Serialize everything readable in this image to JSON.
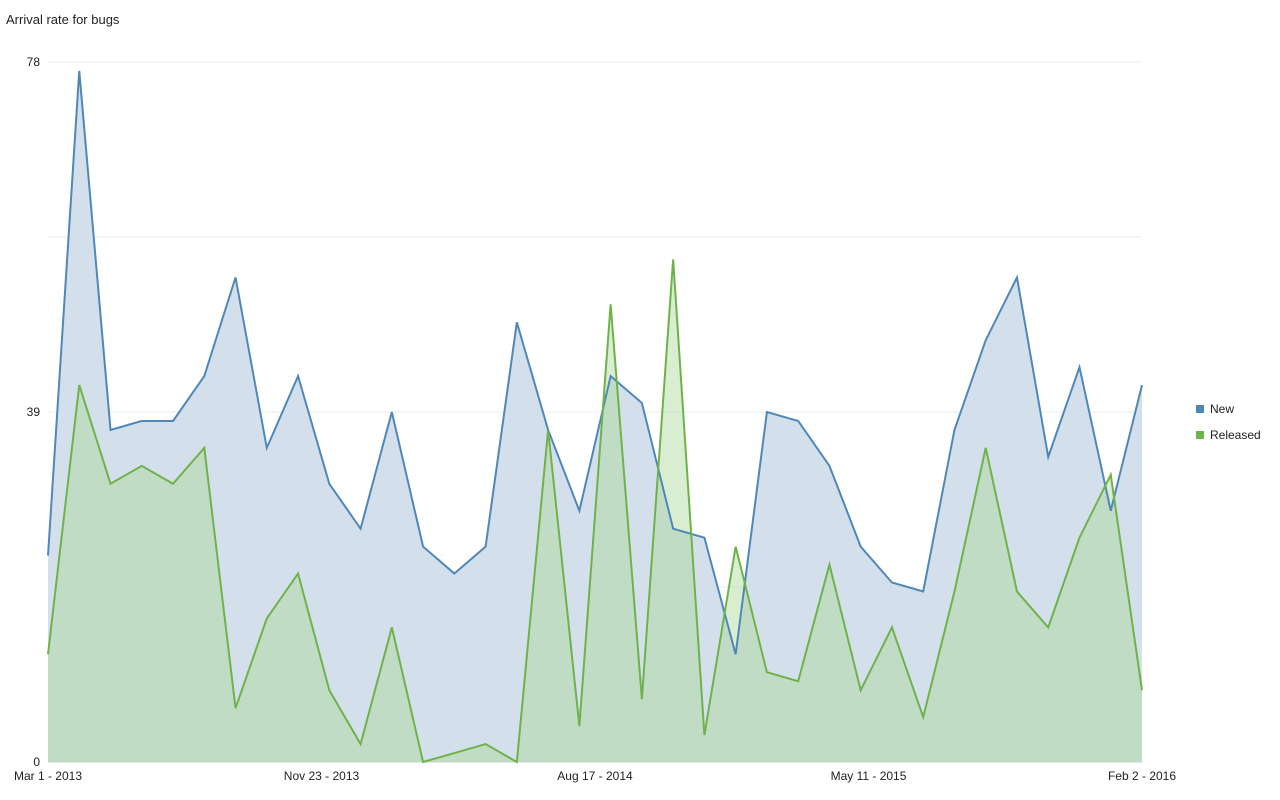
{
  "chart_data": {
    "type": "area",
    "title": "Arrival rate for bugs",
    "x_ticks": [
      "Mar 1 - 2013",
      "Nov 23 - 2013",
      "Aug 17 - 2014",
      "May 11 - 2015",
      "Feb 2 - 2016"
    ],
    "y_ticks": [
      0,
      39,
      78
    ],
    "ylim": [
      0,
      78
    ],
    "grid": true,
    "legend_position": "right",
    "series": [
      {
        "name": "New",
        "color": "#4f88b8",
        "fill": "#d3e0ec",
        "values": [
          23,
          77,
          37,
          38,
          38,
          43,
          54,
          35,
          43,
          31,
          26,
          39,
          24,
          21,
          24,
          49,
          37,
          28,
          43,
          40,
          26,
          25,
          12,
          39,
          38,
          33,
          24,
          20,
          19,
          37,
          47,
          54,
          34,
          44,
          28,
          42
        ]
      },
      {
        "name": "Released",
        "color": "#6fb24a",
        "fill": "rgba(170,215,150,0.45)",
        "values": [
          12,
          42,
          31,
          33,
          31,
          35,
          6,
          16,
          21,
          8,
          2,
          15,
          0,
          1,
          2,
          0,
          37,
          4,
          51,
          7,
          56,
          3,
          24,
          10,
          9,
          22,
          8,
          15,
          5,
          19,
          35,
          19,
          15,
          25,
          32,
          8
        ]
      }
    ]
  }
}
